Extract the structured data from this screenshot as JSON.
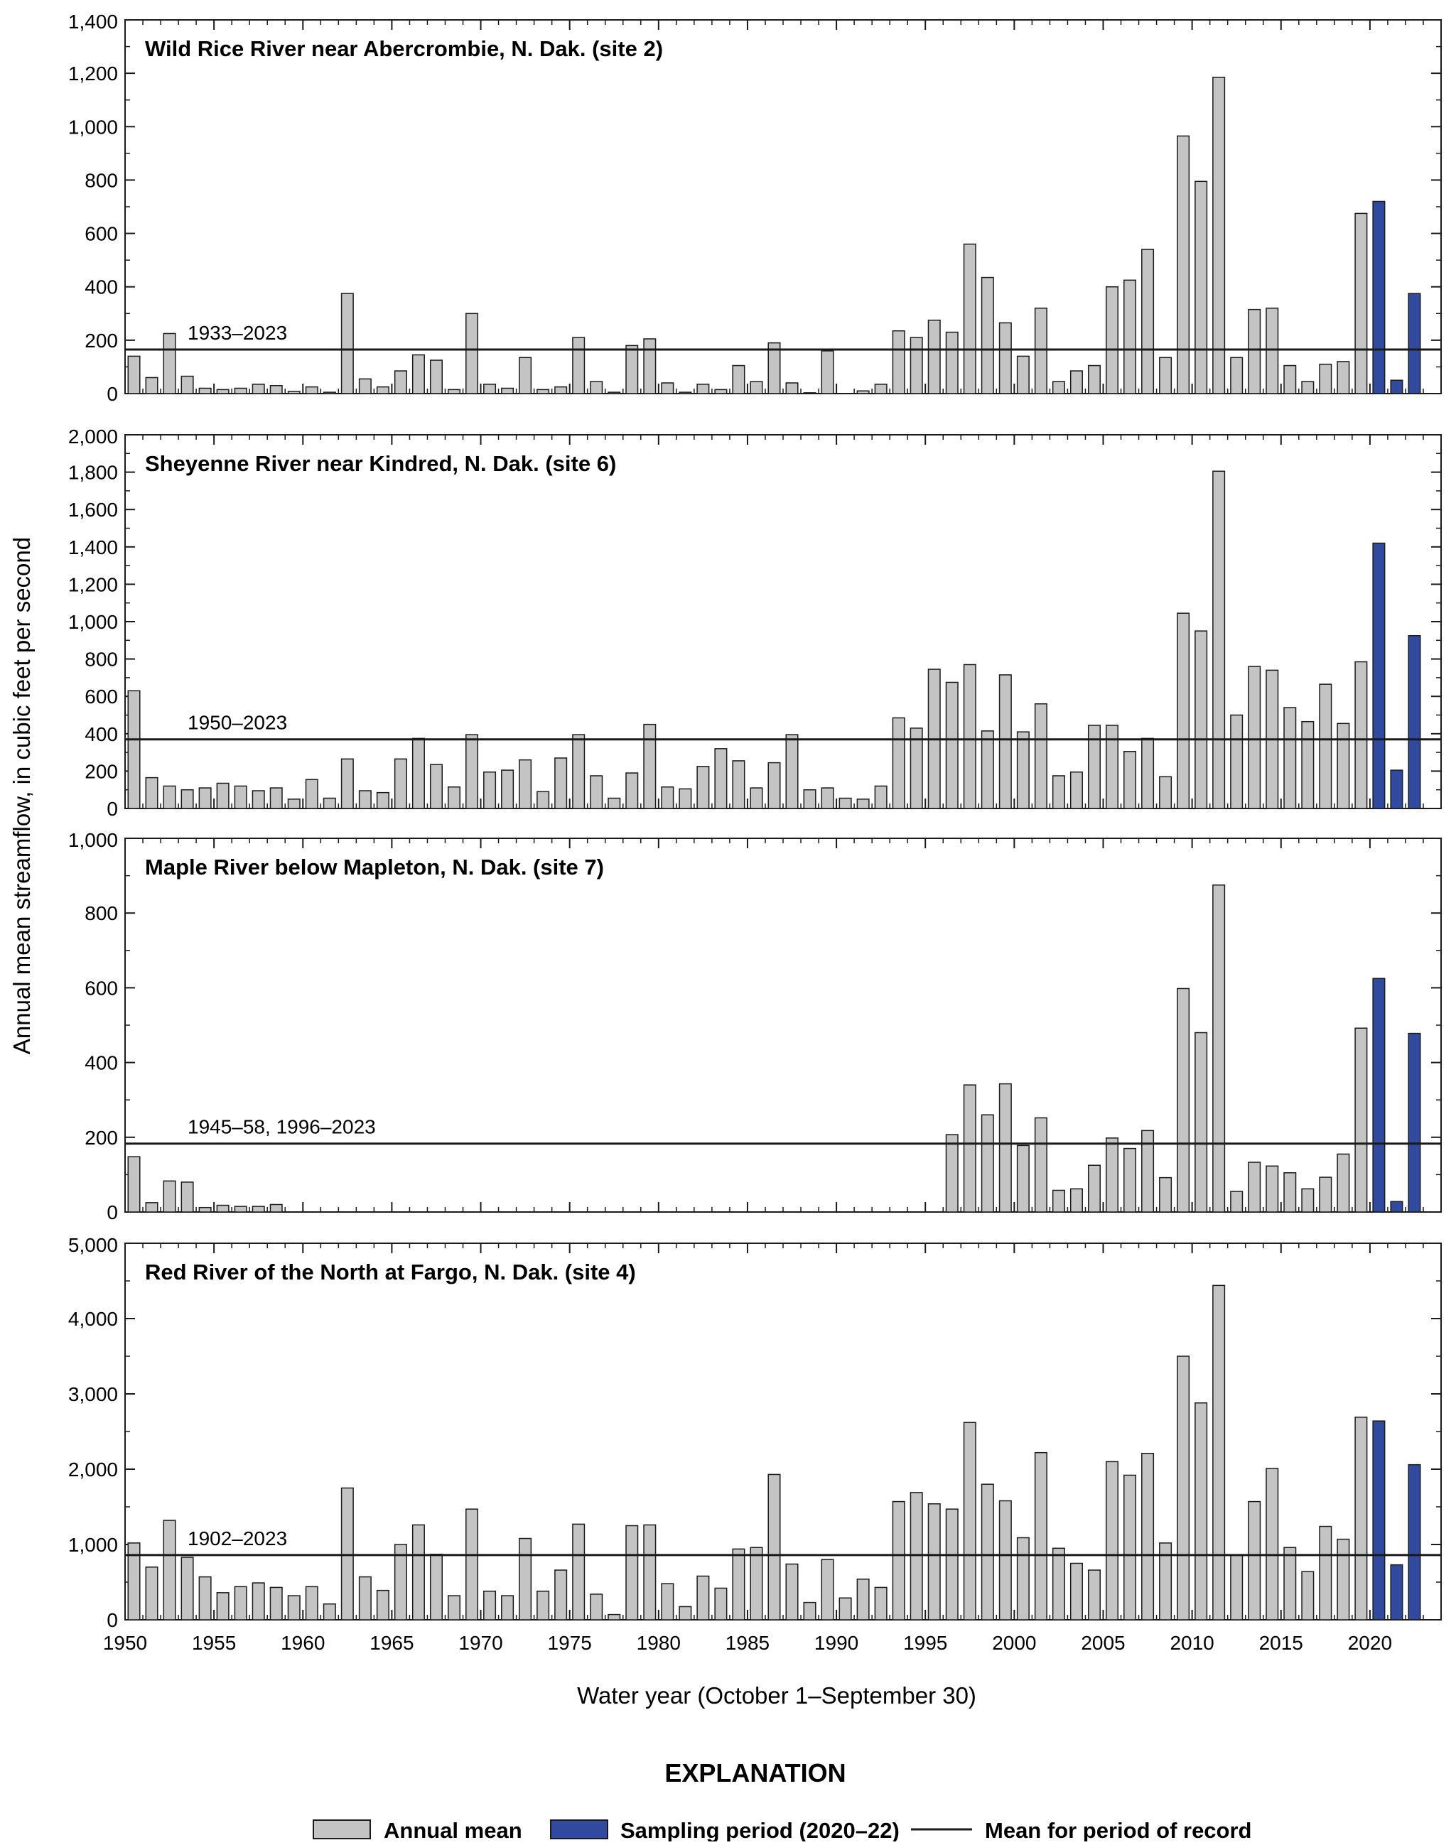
{
  "chart_data": [
    {
      "type": "bar",
      "title": "Wild Rice River near Abercrombie, N. Dak. (site 2)",
      "y_ticks": [
        "0",
        "200",
        "400",
        "600",
        "800",
        "1,000",
        "1,200",
        "1,400"
      ],
      "ylim": [
        0,
        1400
      ],
      "x_start": 1950,
      "values": [
        140,
        60,
        225,
        65,
        20,
        15,
        20,
        35,
        30,
        8,
        25,
        5,
        375,
        55,
        25,
        85,
        145,
        125,
        15,
        300,
        35,
        20,
        135,
        15,
        25,
        210,
        45,
        5,
        180,
        205,
        40,
        5,
        35,
        15,
        105,
        45,
        190,
        40,
        3,
        160,
        0,
        10,
        35,
        235,
        210,
        275,
        230,
        560,
        435,
        265,
        140,
        320,
        45,
        85,
        105,
        400,
        425,
        540,
        135,
        965,
        795,
        1185,
        135,
        315,
        320,
        105,
        45,
        110,
        120,
        675,
        720,
        50,
        375
      ],
      "mean": 165,
      "mean_label": "1933–2023"
    },
    {
      "type": "bar",
      "title": "Sheyenne River near Kindred, N. Dak. (site 6)",
      "y_ticks": [
        "0",
        "200",
        "400",
        "600",
        "800",
        "1,000",
        "1,200",
        "1,400",
        "1,600",
        "1,800",
        "2,000"
      ],
      "ylim": [
        0,
        2000
      ],
      "x_start": 1950,
      "values": [
        630,
        165,
        120,
        100,
        110,
        135,
        120,
        95,
        110,
        50,
        155,
        55,
        265,
        95,
        85,
        265,
        375,
        235,
        115,
        395,
        195,
        205,
        260,
        90,
        270,
        395,
        175,
        55,
        190,
        450,
        115,
        105,
        225,
        320,
        255,
        110,
        245,
        395,
        100,
        110,
        55,
        50,
        120,
        485,
        430,
        745,
        675,
        770,
        415,
        715,
        410,
        560,
        175,
        195,
        445,
        445,
        305,
        375,
        170,
        1045,
        950,
        1805,
        500,
        760,
        740,
        540,
        465,
        665,
        455,
        785,
        1420,
        205,
        925
      ],
      "mean": 370,
      "mean_label": "1950–2023"
    },
    {
      "type": "bar",
      "title": "Maple River below Mapleton, N. Dak. (site 7)",
      "y_ticks": [
        "0",
        "200",
        "400",
        "600",
        "800",
        "1,000"
      ],
      "ylim": [
        0,
        1000
      ],
      "x_start": 1950,
      "values": [
        148,
        25,
        83,
        80,
        12,
        18,
        15,
        15,
        20,
        0,
        0,
        0,
        0,
        0,
        0,
        0,
        0,
        0,
        0,
        0,
        0,
        0,
        0,
        0,
        0,
        0,
        0,
        0,
        0,
        0,
        0,
        0,
        0,
        0,
        0,
        0,
        0,
        0,
        0,
        0,
        0,
        0,
        0,
        0,
        0,
        0,
        207,
        340,
        260,
        343,
        178,
        252,
        58,
        62,
        125,
        198,
        170,
        218,
        92,
        598,
        480,
        875,
        55,
        133,
        123,
        105,
        62,
        93,
        155,
        492,
        625,
        28,
        478
      ],
      "mean": 183,
      "mean_label": "1945–58, 1996–2023"
    },
    {
      "type": "bar",
      "title": "Red River of the North at Fargo, N. Dak. (site 4)",
      "y_ticks": [
        "0",
        "1,000",
        "2,000",
        "3,000",
        "4,000",
        "5,000"
      ],
      "ylim": [
        0,
        5000
      ],
      "x_start": 1950,
      "values": [
        1020,
        700,
        1320,
        830,
        570,
        360,
        440,
        490,
        430,
        320,
        440,
        210,
        1750,
        570,
        390,
        1000,
        1260,
        870,
        320,
        1470,
        380,
        320,
        1080,
        380,
        660,
        1270,
        340,
        70,
        1250,
        1260,
        480,
        175,
        580,
        420,
        940,
        960,
        1930,
        740,
        230,
        800,
        290,
        540,
        430,
        1570,
        1690,
        1540,
        1470,
        2620,
        1800,
        1580,
        1090,
        2220,
        950,
        750,
        660,
        2100,
        1920,
        2210,
        1020,
        3500,
        2880,
        4440,
        860,
        1570,
        2010,
        960,
        640,
        1240,
        1070,
        2690,
        2640,
        730,
        2060
      ],
      "mean": 860,
      "mean_label": "1902–2023"
    }
  ],
  "x_ticks": [
    "1950",
    "1955",
    "1960",
    "1965",
    "1970",
    "1975",
    "1980",
    "1985",
    "1990",
    "1995",
    "2000",
    "2005",
    "2010",
    "2015",
    "2020"
  ],
  "sampling_years": [
    2020,
    2021,
    2022
  ],
  "ylabel": "Annual mean streamflow, in cubic feet per second",
  "xlabel": "Water year (October 1–September 30)",
  "legend": {
    "heading": "EXPLANATION",
    "items": [
      {
        "label": "Annual mean",
        "kind": "bar",
        "color": "#c4c4c4"
      },
      {
        "label": "Sampling period (2020–22)",
        "kind": "bar",
        "color": "#2f4a9e"
      },
      {
        "label": "Mean for period of record",
        "kind": "line",
        "color": "#1a1a1a"
      }
    ]
  },
  "colors": {
    "annual_bar": "#c4c4c4",
    "sampling_bar": "#2f4a9e",
    "bar_outline": "#1a1a1a",
    "mean_line": "#1a1a1a"
  }
}
